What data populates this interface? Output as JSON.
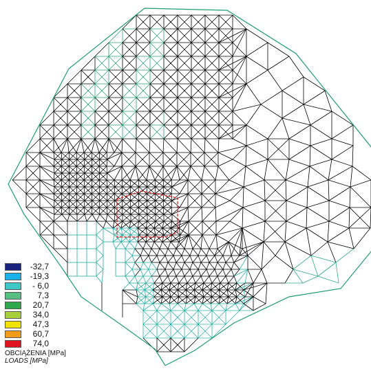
{
  "figure": {
    "mesh_color": "#000000",
    "boundary_color": "#1e9e6e",
    "load_zone_color": "#dd1111"
  },
  "legend": {
    "items": [
      {
        "value": "-32,7",
        "color": "#1a237e"
      },
      {
        "value": "-19,3",
        "color": "#1ab0e8"
      },
      {
        "value": "- 6,0",
        "color": "#3fc7c7"
      },
      {
        "value": "7,3",
        "color": "#55c081"
      },
      {
        "value": "20,7",
        "color": "#2ea84a"
      },
      {
        "value": "34,0",
        "color": "#a6cf3a"
      },
      {
        "value": "47,3",
        "color": "#f2e200"
      },
      {
        "value": "60,7",
        "color": "#f29c1a"
      },
      {
        "value": "74,0",
        "color": "#e0141e"
      }
    ],
    "title": "OBCIĄŻENIA [MPa]",
    "subtitle": "LOADS [MPa]"
  }
}
